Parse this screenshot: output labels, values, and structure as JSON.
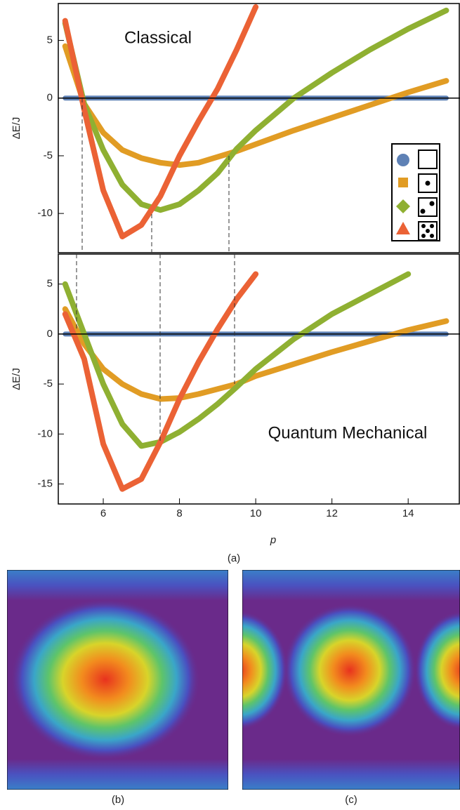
{
  "chart_data": [
    {
      "type": "line",
      "annotation": "Classical",
      "ylabel": "ΔE/J",
      "x": [
        5,
        5.5,
        6,
        6.5,
        7,
        7.5,
        8,
        8.5,
        9,
        9.5,
        10,
        11,
        12,
        13,
        14,
        15
      ],
      "xlim": [
        4.82,
        15.36
      ],
      "ylim": [
        -13.4,
        8.2
      ],
      "yticks": [
        -10,
        -5,
        0,
        5
      ],
      "series": [
        {
          "color": "#5e81b5",
          "values": [
            0,
            0,
            0,
            0,
            0,
            0,
            0,
            0,
            0,
            0,
            0,
            0,
            0,
            0,
            0,
            0
          ]
        },
        {
          "color": "#e19c24",
          "values": [
            4.5,
            -0.5,
            -3,
            -4.5,
            -5.2,
            -5.6,
            -5.8,
            -5.6,
            -5.1,
            -4.6,
            -4,
            -2.8,
            -1.7,
            -0.6,
            0.5,
            1.5
          ]
        },
        {
          "color": "#8fb032",
          "values": [
            6.5,
            -0.5,
            -4.5,
            -7.5,
            -9.2,
            -9.7,
            -9.2,
            -8,
            -6.5,
            -4.4,
            -2.8,
            0,
            2.2,
            4.2,
            6,
            7.6
          ]
        },
        {
          "color": "#eb6235",
          "values": [
            6.7,
            -1,
            -8,
            -12,
            -11,
            -8.5,
            -5,
            -2,
            0.8,
            4.2,
            7.9,
            null,
            null,
            null,
            null,
            null
          ]
        }
      ]
    },
    {
      "type": "line",
      "annotation": "Quantum Mechanical",
      "ylabel": "ΔE/J",
      "xlabel": "p",
      "x": [
        5,
        5.5,
        6,
        6.5,
        7,
        7.5,
        8,
        8.5,
        9,
        9.5,
        10,
        11,
        12,
        13,
        14,
        15
      ],
      "xlim": [
        4.82,
        15.36
      ],
      "ylim": [
        -17,
        8
      ],
      "xticks": [
        6,
        8,
        10,
        12,
        14
      ],
      "yticks": [
        -15,
        -10,
        -5,
        0,
        5
      ],
      "series": [
        {
          "color": "#5e81b5",
          "values": [
            0,
            0,
            0,
            0,
            0,
            0,
            0,
            0,
            0,
            0,
            0,
            0,
            0,
            0,
            0,
            0
          ]
        },
        {
          "color": "#e19c24",
          "values": [
            2.5,
            -1,
            -3.5,
            -5,
            -6,
            -6.5,
            -6.4,
            -6,
            -5.5,
            -5,
            -4.2,
            -3,
            -1.8,
            -0.7,
            0.4,
            1.3
          ]
        },
        {
          "color": "#8fb032",
          "values": [
            5,
            0,
            -5,
            -9,
            -11.2,
            -10.8,
            -9.8,
            -8.5,
            -7,
            -5.3,
            -3.5,
            -0.5,
            2,
            4,
            6,
            null
          ]
        },
        {
          "color": "#eb6235",
          "values": [
            2,
            -2.5,
            -11,
            -15.5,
            -14.5,
            -10.8,
            -6.5,
            -2.8,
            0.5,
            3.5,
            6,
            null,
            null,
            null,
            null,
            null
          ]
        }
      ]
    }
  ],
  "figure_labels": {
    "a": "(a)",
    "b": "(b)",
    "c": "(c)"
  }
}
